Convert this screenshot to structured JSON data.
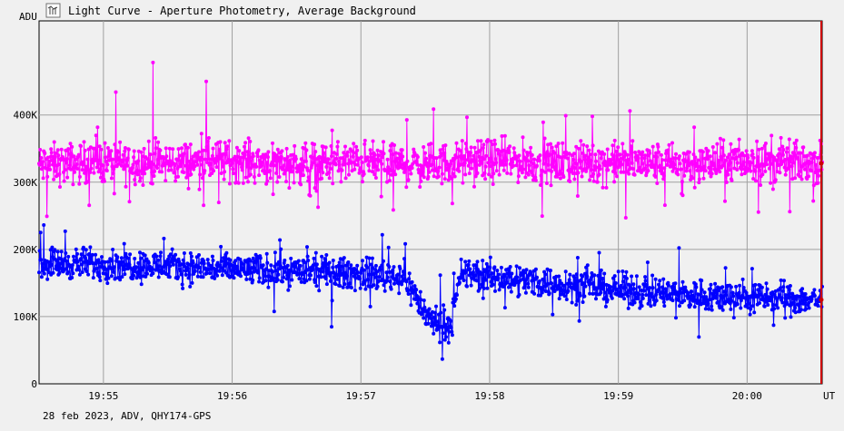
{
  "window": {
    "title": "Light Curve - Aperture Photometry, Average Background",
    "icon": "light-curve-icon"
  },
  "footer": {
    "info": "28 feb 2023, ADV, QHY174-GPS"
  },
  "chart_data": {
    "type": "scatter",
    "title": "Light Curve - Aperture Photometry, Average Background",
    "ylabel": "ADU",
    "xlabel": "UT",
    "x_ticks": [
      "19:55",
      "19:56",
      "19:57",
      "19:58",
      "19:59",
      "20:00"
    ],
    "y_ticks": [
      "0",
      "100K",
      "200K",
      "300K",
      "400K"
    ],
    "y_tick_values": [
      0,
      100000,
      200000,
      300000,
      400000
    ],
    "xlim": [
      "19:54:30",
      "20:00:35"
    ],
    "ylim": [
      0,
      540000
    ],
    "grid": true,
    "cursor_time": "20:00:35",
    "colors": {
      "series1": "#ff00ff",
      "series2": "#0000ff",
      "grid": "#a0a0a0",
      "cursor": "#cc0000",
      "background": "#f0f0f0"
    },
    "series": [
      {
        "color": "#ff00ff",
        "points": [
          [
            "19:54:30",
            325000
          ],
          [
            "19:55:00",
            330000
          ],
          [
            "19:55:30",
            328000
          ],
          [
            "19:56:00",
            332000
          ],
          [
            "19:56:30",
            327000
          ],
          [
            "19:57:00",
            330000
          ],
          [
            "19:57:30",
            325000
          ],
          [
            "19:58:00",
            333000
          ],
          [
            "19:58:30",
            328000
          ],
          [
            "19:59:00",
            330000
          ],
          [
            "19:59:30",
            326000
          ],
          [
            "20:00:00",
            331000
          ],
          [
            "20:00:35",
            328000
          ]
        ],
        "spread": 45000,
        "max_outliers": [
          [
            "19:55:23",
            478000
          ],
          [
            "19:55:48",
            450000
          ]
        ]
      },
      {
        "color": "#0000ff",
        "points": [
          [
            "19:54:30",
            180000
          ],
          [
            "19:55:00",
            178000
          ],
          [
            "19:55:30",
            175000
          ],
          [
            "19:56:00",
            170000
          ],
          [
            "19:56:30",
            168000
          ],
          [
            "19:57:00",
            163000
          ],
          [
            "19:57:20",
            160000
          ],
          [
            "19:57:32",
            95000
          ],
          [
            "19:57:42",
            88000
          ],
          [
            "19:57:47",
            165000
          ],
          [
            "19:58:00",
            160000
          ],
          [
            "19:58:30",
            150000
          ],
          [
            "19:59:00",
            140000
          ],
          [
            "19:59:30",
            133000
          ],
          [
            "20:00:00",
            128000
          ],
          [
            "20:00:35",
            125000
          ]
        ],
        "spread": 35000
      }
    ]
  }
}
